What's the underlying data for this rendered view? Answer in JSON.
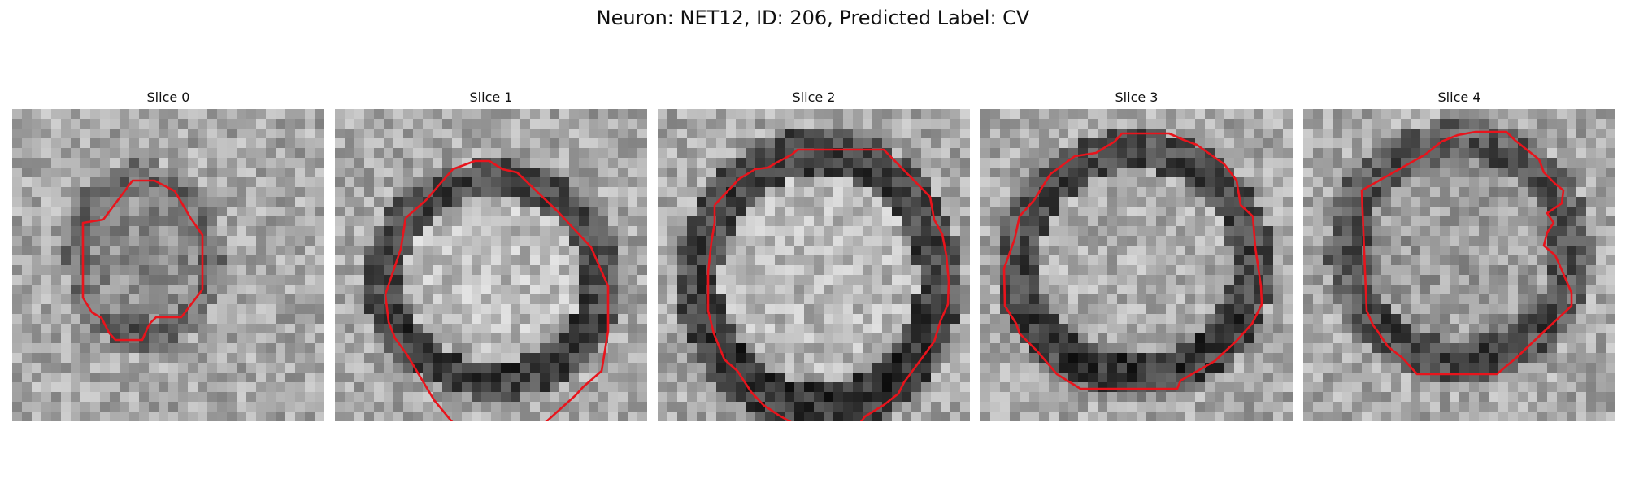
{
  "figure": {
    "title": "Neuron: NET12, ID: 206, Predicted Label: CV"
  },
  "panels": [
    {
      "title": "Slice 0"
    },
    {
      "title": "Slice 1"
    },
    {
      "title": "Slice 2"
    },
    {
      "title": "Slice 3"
    },
    {
      "title": "Slice 4"
    }
  ],
  "colors": {
    "contour": "#e8141c",
    "background": "#ffffff"
  }
}
